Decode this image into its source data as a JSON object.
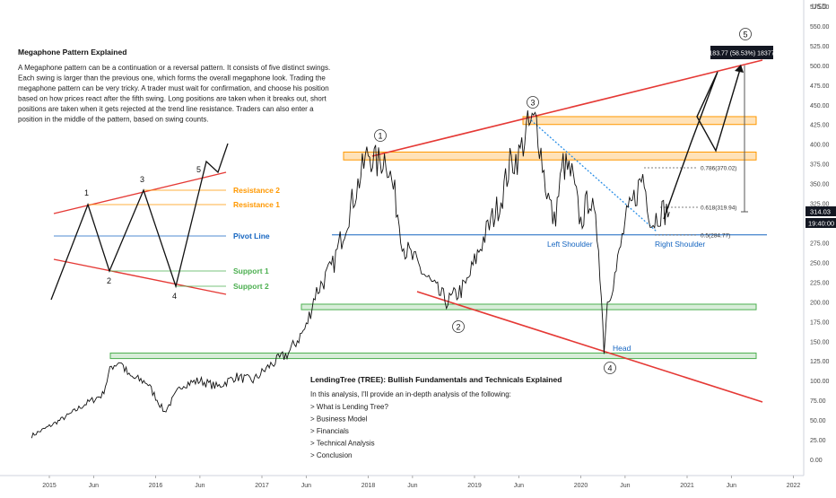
{
  "chart_data": {
    "type": "line",
    "title": "",
    "currency": "USD",
    "x_axis_labels": [
      "2015",
      "Jun",
      "2016",
      "Jun",
      "2017",
      "Jun",
      "2018",
      "Jun",
      "2019",
      "Jun",
      "2020",
      "Jun",
      "2021",
      "Jun",
      "2022"
    ],
    "y_ticks": [
      0,
      25,
      50,
      75,
      100,
      125,
      150,
      175,
      200,
      225,
      250,
      275,
      300,
      325,
      350,
      375,
      400,
      425,
      450,
      475,
      500,
      525,
      550,
      575
    ],
    "y_tick_labels": [
      "0.00",
      "25.00",
      "50.00",
      "75.00",
      "100.00",
      "125.00",
      "150.00",
      "175.00",
      "200.00",
      "225.00",
      "250.00",
      "275.00",
      "300.00",
      "325.00",
      "350.00",
      "375.00",
      "400.00",
      "425.00",
      "450.00",
      "475.00",
      "500.00",
      "525.00",
      "550.00",
      "575.00"
    ],
    "ylim": [
      -15,
      590
    ],
    "price_series": {
      "x": [
        "2014-11",
        "2015-01",
        "2015-03",
        "2015-05",
        "2015-07",
        "2015-08",
        "2015-09",
        "2015-10",
        "2015-12",
        "2016-02",
        "2016-04",
        "2016-06",
        "2016-08",
        "2016-10",
        "2016-12",
        "2017-02",
        "2017-04",
        "2017-06",
        "2017-07",
        "2017-09",
        "2017-11",
        "2018-01",
        "2018-02",
        "2018-03",
        "2018-04",
        "2018-05",
        "2018-07",
        "2018-09",
        "2018-10",
        "2018-11",
        "2018-12",
        "2019-02",
        "2019-04",
        "2019-05",
        "2019-06",
        "2019-07",
        "2019-08",
        "2019-09",
        "2019-10",
        "2019-11",
        "2019-12",
        "2020-01",
        "2020-02",
        "2020-03",
        "2020-03-20",
        "2020-04",
        "2020-05",
        "2020-06",
        "2020-07",
        "2020-08",
        "2020-09",
        "2020-10",
        "2020-11"
      ],
      "y": [
        30,
        42,
        55,
        70,
        82,
        118,
        125,
        105,
        98,
        60,
        95,
        100,
        92,
        105,
        100,
        120,
        135,
        168,
        210,
        245,
        320,
        390,
        375,
        385,
        335,
        270,
        240,
        210,
        200,
        210,
        220,
        280,
        330,
        375,
        385,
        420,
        430,
        350,
        300,
        375,
        360,
        300,
        335,
        275,
        140,
        200,
        240,
        300,
        330,
        360,
        300,
        315,
        314
      ]
    },
    "last_price": "314.03",
    "last_time": "19:40:00",
    "rect_label": "183.77 (58.53%) 18377",
    "fib_levels": [
      {
        "ratio": "0.786",
        "value": 370.02,
        "label": "0.786(370.02)"
      },
      {
        "ratio": "0.618",
        "value": 319.94,
        "label": "0.618(319.94)"
      },
      {
        "ratio": "0.5",
        "value": 284.77,
        "label": "0.5(284.77)"
      }
    ],
    "zones": [
      {
        "color": "orange",
        "low": 425,
        "high": 435
      },
      {
        "color": "orange",
        "low": 380,
        "high": 390
      },
      {
        "color": "green",
        "low": 190,
        "high": 197
      },
      {
        "color": "green",
        "low": 128,
        "high": 135
      }
    ],
    "pivot_level": 285,
    "swing_labels": [
      "1",
      "2",
      "3",
      "4",
      "5"
    ],
    "annotations": {
      "left_shoulder": "Left Shoulder",
      "right_shoulder": "Right Shoulder",
      "head": "Head"
    },
    "explainer": {
      "title": "Megaphone Pattern Explained",
      "body": [
        "A Megaphone pattern can be a continuation or a reversal pattern. It consists of five distinct swings.",
        "Each swing is larger than the previous one, which forms the overall megaphone look. Trading the",
        "megaphone pattern can be very tricky. A trader must wait for confirmation, and choose his position",
        "based on how prices react after the fifth swing. Long positions are taken when it breaks out, short",
        "positions are taken when it gets rejected at the trend line resistance. Traders can also enter a",
        "position in the middle of the pattern, based on swing counts."
      ],
      "diagram_numbers": [
        "1",
        "2",
        "3",
        "4",
        "5"
      ],
      "resistance2": "Resistance 2",
      "resistance1": "Resistance 1",
      "pivot": "Pivot Line",
      "support1": "Support 1",
      "support2": "Support 2"
    },
    "info_box": {
      "title": "LendingTree (TREE): Bullish Fundamentals and Technicals Explained",
      "intro": "In this analysis, I'll provide an in-depth analysis of the following:",
      "items": [
        "> What is Lending Tree?",
        "> Business Model",
        "> Financials",
        "> Technical Analysis",
        "> Conclusion"
      ]
    },
    "colors": {
      "trendline": "#e53935",
      "orange_zone": "#ff9800",
      "green_zone": "#4caf50",
      "pivot": "#1565c0",
      "fib_line": "#555555",
      "price": "#111111",
      "badge_bg": "#131722"
    }
  }
}
